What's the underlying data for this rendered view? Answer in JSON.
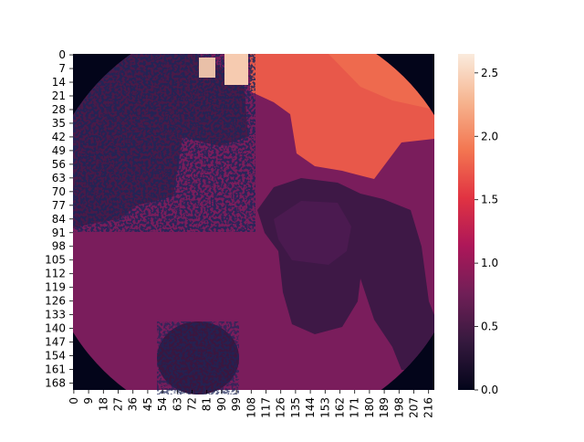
{
  "chart_data": {
    "type": "heatmap",
    "title": "",
    "xlabel": "",
    "ylabel": "",
    "x_ticks": [
      "0",
      "9",
      "18",
      "27",
      "36",
      "45",
      "54",
      "63",
      "72",
      "81",
      "90",
      "99",
      "108",
      "117",
      "126",
      "135",
      "144",
      "153",
      "162",
      "171",
      "180",
      "189",
      "198",
      "207",
      "216"
    ],
    "y_ticks": [
      "0",
      "7",
      "14",
      "21",
      "28",
      "35",
      "42",
      "49",
      "56",
      "63",
      "70",
      "77",
      "84",
      "91",
      "98",
      "105",
      "112",
      "119",
      "126",
      "133",
      "140",
      "147",
      "154",
      "161",
      "168"
    ],
    "colorbar": {
      "min": 0.0,
      "max": 2.65,
      "ticks": [
        "0.0",
        "0.5",
        "1.0",
        "1.5",
        "2.0",
        "2.5"
      ],
      "colormap": "rocket",
      "stops": [
        "#03051a",
        "#35193e",
        "#701f57",
        "#ad1759",
        "#e13342",
        "#f37651",
        "#f6b48f",
        "#faebdd"
      ]
    },
    "grid": false,
    "shape": {
      "rows": 172,
      "cols": 220
    },
    "regions": {
      "background_depth": 0.9,
      "bright_region_depth": 2.0,
      "object_depth": 0.4,
      "invalid_depth": 0.0,
      "saturated_depth": 2.6
    }
  }
}
